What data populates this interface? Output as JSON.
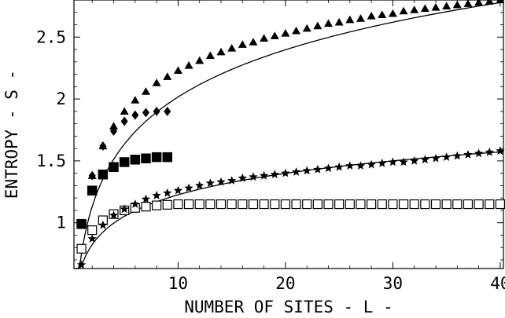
{
  "chart_data": {
    "type": "scatter",
    "title": "",
    "xlabel": "NUMBER OF SITES - L -",
    "ylabel": "ENTROPY - S -",
    "xlim": [
      0.3,
      40.3
    ],
    "ylim": [
      0.63,
      2.8
    ],
    "grid": false,
    "x_ticks": [
      {
        "value": 10,
        "label": "10"
      },
      {
        "value": 20,
        "label": "20"
      },
      {
        "value": 30,
        "label": "30"
      },
      {
        "value": 40,
        "label": "40"
      }
    ],
    "y_ticks": [
      {
        "value": 1.0,
        "label": "1"
      },
      {
        "value": 1.5,
        "label": "1.5"
      },
      {
        "value": 2.0,
        "label": "2"
      },
      {
        "value": 2.5,
        "label": "2.5"
      }
    ],
    "series": [
      {
        "marker": "triangle",
        "x": [
          1,
          2,
          3,
          4,
          5,
          6,
          7,
          8,
          9,
          10,
          11,
          12,
          13,
          14,
          15,
          16,
          17,
          18,
          19,
          20,
          21,
          22,
          23,
          24,
          25,
          26,
          27,
          28,
          29,
          30,
          31,
          32,
          33,
          34,
          35,
          36,
          37,
          38,
          39,
          40
        ],
        "y": [
          1.0,
          1.38,
          1.62,
          1.78,
          1.9,
          1.99,
          2.06,
          2.13,
          2.18,
          2.23,
          2.27,
          2.31,
          2.35,
          2.38,
          2.41,
          2.44,
          2.46,
          2.49,
          2.51,
          2.53,
          2.55,
          2.57,
          2.59,
          2.61,
          2.62,
          2.64,
          2.65,
          2.67,
          2.68,
          2.69,
          2.71,
          2.72,
          2.73,
          2.74,
          2.75,
          2.76,
          2.77,
          2.78,
          2.79,
          2.8
        ]
      },
      {
        "marker": "diamond",
        "x": [
          2,
          3,
          4,
          5,
          6,
          7,
          8,
          9
        ],
        "y": [
          1.38,
          1.62,
          1.74,
          1.82,
          1.87,
          1.89,
          1.9,
          1.9
        ]
      },
      {
        "marker": "filled-square",
        "x": [
          1,
          2,
          3,
          4,
          5,
          6,
          7,
          8,
          9
        ],
        "y": [
          0.99,
          1.26,
          1.39,
          1.45,
          1.49,
          1.51,
          1.52,
          1.53,
          1.53
        ]
      },
      {
        "marker": "open-square",
        "x": [
          1,
          2,
          3,
          4,
          5,
          6,
          7,
          8,
          9,
          10,
          11,
          12,
          13,
          14,
          15,
          16,
          17,
          18,
          19,
          20,
          21,
          22,
          23,
          24,
          25,
          26,
          27,
          28,
          29,
          30,
          31,
          32,
          33,
          34,
          35,
          36,
          37,
          38,
          39,
          40
        ],
        "y": [
          0.79,
          0.94,
          1.02,
          1.07,
          1.1,
          1.12,
          1.13,
          1.14,
          1.145,
          1.15,
          1.15,
          1.15,
          1.15,
          1.15,
          1.15,
          1.15,
          1.15,
          1.15,
          1.15,
          1.15,
          1.15,
          1.15,
          1.15,
          1.15,
          1.15,
          1.15,
          1.15,
          1.15,
          1.15,
          1.15,
          1.15,
          1.15,
          1.15,
          1.15,
          1.15,
          1.15,
          1.15,
          1.15,
          1.15,
          1.15
        ]
      },
      {
        "marker": "star",
        "x": [
          1,
          2,
          3,
          4,
          5,
          6,
          7,
          8,
          9,
          10,
          11,
          12,
          13,
          14,
          15,
          16,
          17,
          18,
          19,
          20,
          21,
          22,
          23,
          24,
          25,
          26,
          27,
          28,
          29,
          30,
          31,
          32,
          33,
          34,
          35,
          36,
          37,
          38,
          39,
          40
        ],
        "y": [
          0.66,
          0.87,
          0.98,
          1.06,
          1.11,
          1.15,
          1.19,
          1.22,
          1.24,
          1.26,
          1.28,
          1.3,
          1.32,
          1.33,
          1.34,
          1.36,
          1.37,
          1.38,
          1.39,
          1.4,
          1.41,
          1.42,
          1.43,
          1.44,
          1.45,
          1.46,
          1.46,
          1.47,
          1.48,
          1.49,
          1.49,
          1.5,
          1.51,
          1.52,
          1.53,
          1.54,
          1.55,
          1.56,
          1.57,
          1.58
        ]
      }
    ],
    "fit_lines": [
      {
        "fits_marker": "triangle",
        "x_from": 0.3,
        "x_to": 40.3,
        "a": 0.75,
        "b": 0.55
      },
      {
        "fits_marker": "star",
        "x_from": 0.4,
        "x_to": 40.3,
        "a": 0.65,
        "b": 0.25
      }
    ]
  }
}
